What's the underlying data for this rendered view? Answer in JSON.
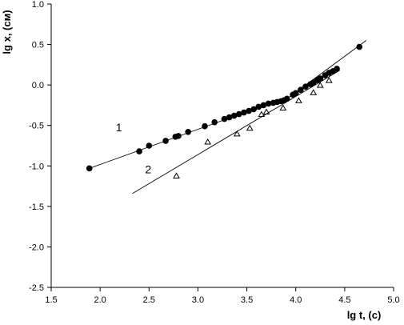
{
  "chart_data": {
    "type": "scatter",
    "xlabel": "lg t, (c)",
    "ylabel": "lg x, (см)",
    "xlim": [
      1.5,
      5.0
    ],
    "ylim": [
      -2.5,
      1.0
    ],
    "x_ticks": [
      "1.5",
      "2.0",
      "2.5",
      "3.0",
      "3.5",
      "4.0",
      "4.5",
      "5.0"
    ],
    "y_ticks": [
      "1.0",
      "0.5",
      "0.0",
      "-0.5",
      "-1.0",
      "-1.5",
      "-2.0",
      "-2.5"
    ],
    "x_tick_values": [
      1.5,
      2.0,
      2.5,
      3.0,
      3.5,
      4.0,
      4.5,
      5.0
    ],
    "y_tick_values": [
      1.0,
      0.5,
      0.0,
      -0.5,
      -1.0,
      -1.5,
      -2.0,
      -2.5
    ],
    "grid": false,
    "legend": "none",
    "series": [
      {
        "label": "1",
        "marker": "circle",
        "points": [
          [
            1.89,
            -1.03
          ],
          [
            2.4,
            -0.82
          ],
          [
            2.5,
            -0.75
          ],
          [
            2.67,
            -0.69
          ],
          [
            2.77,
            -0.64
          ],
          [
            2.8,
            -0.63
          ],
          [
            2.9,
            -0.58
          ],
          [
            3.07,
            -0.51
          ],
          [
            3.17,
            -0.46
          ],
          [
            3.27,
            -0.42
          ],
          [
            3.32,
            -0.4
          ],
          [
            3.37,
            -0.38
          ],
          [
            3.42,
            -0.36
          ],
          [
            3.47,
            -0.34
          ],
          [
            3.52,
            -0.32
          ],
          [
            3.57,
            -0.3
          ],
          [
            3.62,
            -0.27
          ],
          [
            3.67,
            -0.25
          ],
          [
            3.72,
            -0.23
          ],
          [
            3.77,
            -0.22
          ],
          [
            3.81,
            -0.21
          ],
          [
            3.85,
            -0.2
          ],
          [
            3.88,
            -0.19
          ],
          [
            3.91,
            -0.17
          ],
          [
            3.97,
            -0.12
          ],
          [
            4.0,
            -0.1
          ],
          [
            4.05,
            -0.06
          ],
          [
            4.1,
            -0.02
          ],
          [
            4.15,
            0.01
          ],
          [
            4.18,
            0.03
          ],
          [
            4.22,
            0.06
          ],
          [
            4.25,
            0.08
          ],
          [
            4.3,
            0.12
          ],
          [
            4.34,
            0.15
          ],
          [
            4.38,
            0.17
          ],
          [
            4.42,
            0.2
          ],
          [
            4.65,
            0.47
          ]
        ],
        "fit_line": [
          [
            1.89,
            -1.03
          ],
          [
            3.57,
            -0.3
          ],
          [
            3.9,
            -0.18
          ],
          [
            4.72,
            0.55
          ]
        ]
      },
      {
        "label": "2",
        "marker": "triangle",
        "points": [
          [
            2.78,
            -1.12
          ],
          [
            3.1,
            -0.7
          ],
          [
            3.4,
            -0.6
          ],
          [
            3.53,
            -0.53
          ],
          [
            3.65,
            -0.36
          ],
          [
            3.7,
            -0.33
          ],
          [
            3.87,
            -0.28
          ],
          [
            4.03,
            -0.19
          ],
          [
            4.18,
            -0.09
          ],
          [
            4.25,
            0.0
          ],
          [
            4.34,
            0.06
          ]
        ],
        "fit_line": [
          [
            2.33,
            -1.34
          ],
          [
            4.45,
            0.18
          ]
        ]
      }
    ]
  }
}
